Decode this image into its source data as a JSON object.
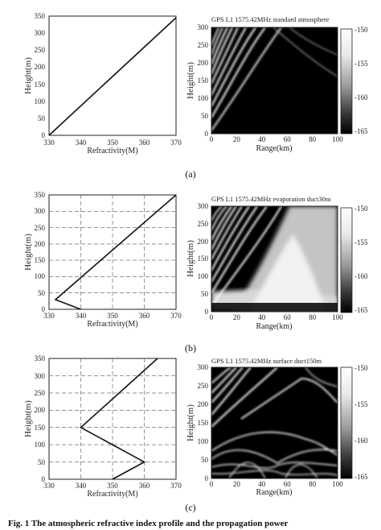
{
  "figure": {
    "panels": [
      {
        "label": "(a)",
        "profile": {
          "xlabel": "Refractivity(M)",
          "ylabel": "Height(m)",
          "xticks": [
            "330",
            "340",
            "350",
            "360",
            "370"
          ],
          "yticks": [
            "0",
            "50",
            "100",
            "150",
            "200",
            "250",
            "300",
            "350"
          ],
          "grid": "none"
        },
        "map": {
          "title": "GPS L1 1575.42MHz  standard atmosphere",
          "xlabel": "Range(km)",
          "ylabel": "Height(m)",
          "xticks": [
            "0",
            "20",
            "40",
            "60",
            "80",
            "100"
          ],
          "yticks": [
            "0",
            "50",
            "100",
            "150",
            "200",
            "250",
            "300"
          ],
          "cbticks": [
            "-150",
            "-155",
            "-160",
            "-165"
          ]
        }
      },
      {
        "label": "(b)",
        "profile": {
          "xlabel": "Refractivity(M)",
          "ylabel": "Height(m)",
          "xticks": [
            "330",
            "340",
            "350",
            "360",
            "370"
          ],
          "yticks": [
            "0",
            "50",
            "100",
            "150",
            "200",
            "250",
            "300",
            "350"
          ],
          "grid": "dashed"
        },
        "map": {
          "title": "GPS L1 1575.42MHz  evaporation duct30m",
          "xlabel": "Range(km)",
          "ylabel": "Height(m)",
          "xticks": [
            "0",
            "20",
            "40",
            "60",
            "80",
            "100"
          ],
          "yticks": [
            "0",
            "50",
            "100",
            "150",
            "200",
            "250",
            "300"
          ],
          "cbticks": [
            "-150",
            "-155",
            "-160",
            "-165"
          ]
        }
      },
      {
        "label": "(c)",
        "profile": {
          "xlabel": "Refractivity(M)",
          "ylabel": "Height(m)",
          "xticks": [
            "330",
            "340",
            "350",
            "360",
            "370"
          ],
          "yticks": [
            "0",
            "50",
            "100",
            "150",
            "200",
            "250",
            "300",
            "350"
          ],
          "grid": "dashed"
        },
        "map": {
          "title": "GPS L1 1575.42MHz  surface duct150m",
          "xlabel": "Range(km)",
          "ylabel": "Height(m)",
          "xticks": [
            "0",
            "20",
            "40",
            "60",
            "80",
            "100"
          ],
          "yticks": [
            "0",
            "50",
            "100",
            "150",
            "200",
            "250",
            "300"
          ],
          "cbticks": [
            "-150",
            "-155",
            "-160",
            "-165"
          ]
        }
      }
    ],
    "caption": "Fig. 1 The atmospheric refractive index profile and the propagation power"
  },
  "chart_data": [
    {
      "type": "line",
      "xlabel": "Refractivity(M)",
      "ylabel": "Height(m)",
      "xlim": [
        330,
        370
      ],
      "ylim": [
        0,
        350
      ],
      "series": [
        {
          "x": [
            330,
            374
          ],
          "y": [
            0,
            350
          ]
        }
      ]
    },
    {
      "type": "heatmap",
      "title": "GPS L1 1575.42MHz  standard atmosphere",
      "xlabel": "Range(km)",
      "ylabel": "Height(m)",
      "xlim": [
        0,
        100
      ],
      "ylim": [
        0,
        300
      ],
      "colorbar_range": [
        -165,
        -150
      ]
    },
    {
      "type": "line",
      "xlabel": "Refractivity(M)",
      "ylabel": "Height(m)",
      "xlim": [
        330,
        370
      ],
      "ylim": [
        0,
        350
      ],
      "grid": true,
      "series": [
        {
          "x": [
            340,
            332,
            370
          ],
          "y": [
            0,
            30,
            350
          ]
        }
      ]
    },
    {
      "type": "heatmap",
      "title": "GPS L1 1575.42MHz  evaporation duct30m",
      "xlabel": "Range(km)",
      "ylabel": "Height(m)",
      "xlim": [
        0,
        100
      ],
      "ylim": [
        0,
        300
      ],
      "colorbar_range": [
        -165,
        -150
      ]
    },
    {
      "type": "line",
      "xlabel": "Refractivity(M)",
      "ylabel": "Height(m)",
      "xlim": [
        330,
        370
      ],
      "ylim": [
        0,
        350
      ],
      "grid": true,
      "series": [
        {
          "x": [
            350,
            360,
            340,
            370
          ],
          "y": [
            0,
            50,
            150,
            350
          ]
        }
      ]
    },
    {
      "type": "heatmap",
      "title": "GPS L1 1575.42MHz  surface duct150m",
      "xlabel": "Range(km)",
      "ylabel": "Height(m)",
      "xlim": [
        0,
        100
      ],
      "ylim": [
        0,
        300
      ],
      "colorbar_range": [
        -165,
        -150
      ]
    }
  ]
}
